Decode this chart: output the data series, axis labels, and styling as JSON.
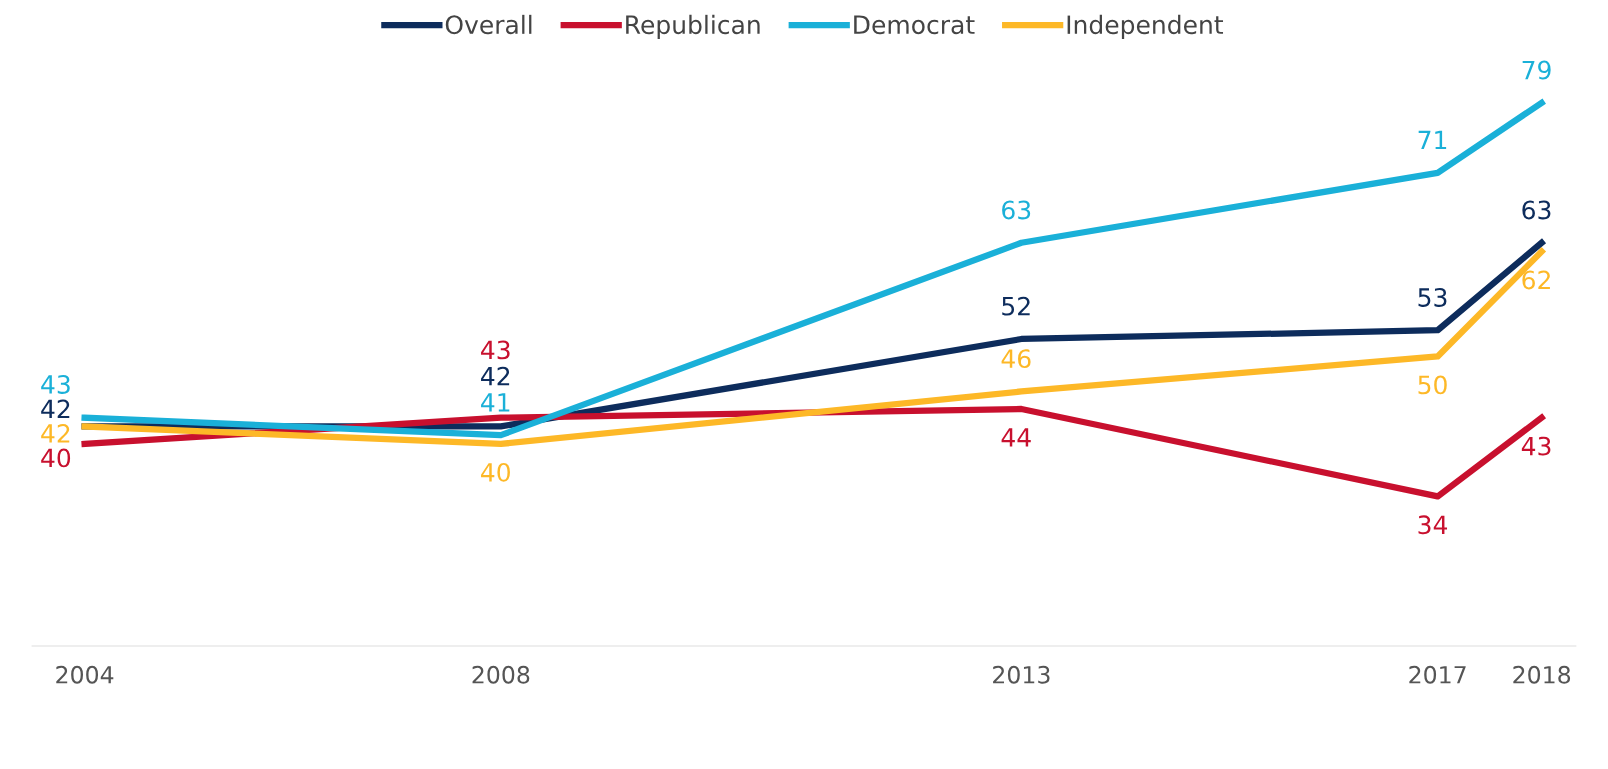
{
  "chart_data": {
    "type": "line",
    "x": [
      "2004",
      "2008",
      "2013",
      "2017",
      "2018"
    ],
    "xlim": [
      "2003-07",
      "2018-05"
    ],
    "xticks": [
      "2004",
      "2008",
      "2013",
      "2017",
      "2018"
    ],
    "tick_labels": "x",
    "series": [
      {
        "name": "Overall",
        "color": "#0d2c5c",
        "values": [
          42,
          42,
          52,
          53,
          63
        ]
      },
      {
        "name": "Republican",
        "color": "#c8102e",
        "values": [
          40,
          43,
          44,
          34,
          43
        ]
      },
      {
        "name": "Democrat",
        "color": "#1ab0d8",
        "values": [
          43,
          41,
          63,
          71,
          79
        ]
      },
      {
        "name": "Independent",
        "color": "#fdb827",
        "values": [
          42,
          40,
          46,
          50,
          62
        ]
      }
    ],
    "data_labels": true,
    "legend": "top",
    "grid": false,
    "marker": "none",
    "line_style": "solid"
  }
}
